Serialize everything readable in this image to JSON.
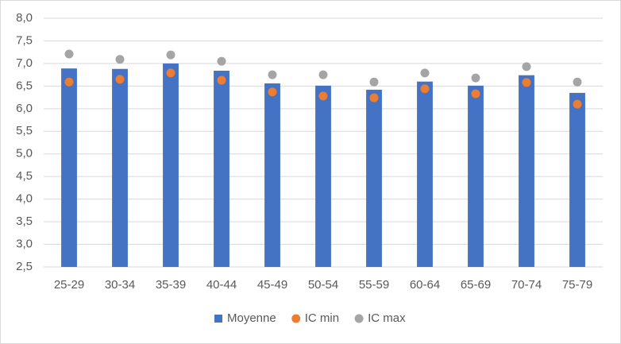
{
  "chart_data": {
    "type": "bar",
    "categories": [
      "25-29",
      "30-34",
      "35-39",
      "40-44",
      "45-49",
      "50-54",
      "55-59",
      "60-64",
      "65-69",
      "70-74",
      "75-79"
    ],
    "series": [
      {
        "name": "Moyenne",
        "type": "bar",
        "color": "#4472c4",
        "values": [
          6.89,
          6.88,
          7.0,
          6.84,
          6.56,
          6.51,
          6.42,
          6.6,
          6.51,
          6.74,
          6.35
        ]
      },
      {
        "name": "IC min",
        "type": "scatter",
        "color": "#ed7d31",
        "values": [
          6.59,
          6.65,
          6.79,
          6.63,
          6.37,
          6.28,
          6.24,
          6.44,
          6.33,
          6.58,
          6.1
        ]
      },
      {
        "name": "IC max",
        "type": "scatter",
        "color": "#a5a5a5",
        "values": [
          7.21,
          7.09,
          7.19,
          7.05,
          6.75,
          6.75,
          6.59,
          6.79,
          6.68,
          6.93,
          6.59
        ]
      }
    ],
    "ylim": [
      2.5,
      8.0
    ],
    "yticks": [
      {
        "value": 2.5,
        "label": "2,5"
      },
      {
        "value": 3.0,
        "label": "3,0"
      },
      {
        "value": 3.5,
        "label": "3,5"
      },
      {
        "value": 4.0,
        "label": "4,0"
      },
      {
        "value": 4.5,
        "label": "4,5"
      },
      {
        "value": 5.0,
        "label": "5,0"
      },
      {
        "value": 5.5,
        "label": "5,5"
      },
      {
        "value": 6.0,
        "label": "6,0"
      },
      {
        "value": 6.5,
        "label": "6,5"
      },
      {
        "value": 7.0,
        "label": "7,0"
      },
      {
        "value": 7.5,
        "label": "7,5"
      },
      {
        "value": 8.0,
        "label": "8,0"
      }
    ],
    "grid": true,
    "legend": "bottom"
  }
}
